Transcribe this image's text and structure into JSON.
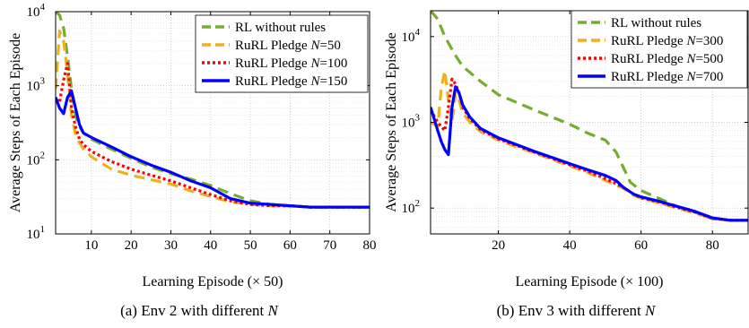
{
  "chart_data": [
    {
      "type": "line",
      "caption": "(a) Env 2 with different N",
      "xlabel": "Learning Episode (× 50)",
      "ylabel": "Average Steps of Each Episode",
      "xlim": [
        1,
        80
      ],
      "ylim": [
        10,
        10000
      ],
      "yscale": "log",
      "grid": true,
      "legend_position": "top-right",
      "x_ticks": [
        10,
        20,
        30,
        40,
        50,
        60,
        70,
        80
      ],
      "y_ticks": [
        10,
        100,
        1000,
        10000
      ],
      "y_tick_labels": [
        {
          "base": "10",
          "exp": "1"
        },
        {
          "base": "10",
          "exp": "2"
        },
        {
          "base": "10",
          "exp": "3"
        },
        {
          "base": "10",
          "exp": "4"
        }
      ],
      "series": [
        {
          "name": "RL without rules",
          "color": "#77ac30",
          "dash": "dash",
          "x": [
            1,
            2,
            3,
            4,
            5,
            6,
            7,
            8,
            10,
            15,
            20,
            25,
            30,
            35,
            40,
            45,
            50,
            55,
            60,
            65,
            70,
            75,
            80
          ],
          "y": [
            10000,
            9000,
            6000,
            2500,
            900,
            400,
            280,
            230,
            190,
            140,
            105,
            80,
            65,
            55,
            45,
            35,
            28,
            25,
            24,
            23,
            23,
            23,
            23
          ]
        },
        {
          "name": "RuRL Pledge N=50",
          "color": "#edb120",
          "dash": "dash",
          "x": [
            1,
            2,
            3,
            4,
            5,
            6,
            7,
            8,
            10,
            15,
            20,
            25,
            30,
            35,
            40,
            45,
            50,
            55,
            60,
            65,
            70,
            75,
            80
          ],
          "y": [
            900,
            5500,
            4000,
            1500,
            400,
            220,
            170,
            140,
            110,
            75,
            62,
            54,
            47,
            38,
            32,
            27,
            25,
            24,
            24,
            23,
            23,
            23,
            23
          ]
        },
        {
          "name": "RuRL Pledge N=100",
          "color": "#ff0000",
          "dash": "dot",
          "x": [
            1,
            2,
            3,
            4,
            5,
            6,
            7,
            8,
            10,
            15,
            20,
            25,
            30,
            35,
            40,
            45,
            50,
            55,
            60,
            65,
            70,
            75,
            80
          ],
          "y": [
            650,
            600,
            1200,
            2000,
            500,
            280,
            190,
            160,
            130,
            95,
            75,
            62,
            52,
            42,
            34,
            28,
            25,
            24,
            24,
            23,
            23,
            23,
            23
          ]
        },
        {
          "name": "RuRL Pledge N=150",
          "color": "#0000ff",
          "dash": "solid",
          "x": [
            1,
            2,
            3,
            4,
            5,
            6,
            7,
            8,
            10,
            15,
            20,
            25,
            30,
            35,
            40,
            45,
            50,
            55,
            60,
            65,
            70,
            75,
            80
          ],
          "y": [
            700,
            500,
            420,
            700,
            850,
            500,
            300,
            230,
            200,
            150,
            110,
            85,
            68,
            52,
            42,
            30,
            26,
            25,
            24,
            23,
            23,
            23,
            23
          ]
        }
      ]
    },
    {
      "type": "line",
      "caption": "(b) Env 3 with different N",
      "xlabel": "Learning Episode (× 100)",
      "ylabel": "Average Steps of Each Episode",
      "xlim": [
        1,
        90
      ],
      "ylim": [
        50,
        20000
      ],
      "yscale": "log",
      "grid": true,
      "legend_position": "top-right",
      "x_ticks": [
        20,
        40,
        60,
        80
      ],
      "y_ticks": [
        100,
        1000,
        10000
      ],
      "y_tick_labels": [
        {
          "base": "10",
          "exp": "2"
        },
        {
          "base": "10",
          "exp": "3"
        },
        {
          "base": "10",
          "exp": "4"
        }
      ],
      "series": [
        {
          "name": "RL without rules",
          "color": "#77ac30",
          "dash": "dash",
          "x": [
            1,
            3,
            5,
            8,
            10,
            15,
            20,
            30,
            40,
            45,
            50,
            53,
            55,
            57,
            60,
            65,
            70,
            75,
            80,
            85,
            90
          ],
          "y": [
            20000,
            16000,
            10000,
            6000,
            4500,
            3000,
            2100,
            1400,
            950,
            750,
            620,
            450,
            300,
            200,
            160,
            130,
            105,
            90,
            75,
            72,
            72
          ]
        },
        {
          "name": "RuRL Pledge N=300",
          "color": "#edb120",
          "dash": "dash",
          "x": [
            1,
            3,
            4,
            5,
            6,
            7,
            8,
            9,
            10,
            12,
            15,
            20,
            25,
            30,
            35,
            40,
            45,
            50,
            55,
            58,
            60,
            65,
            70,
            75,
            80,
            85,
            90
          ],
          "y": [
            1000,
            900,
            2500,
            4000,
            1800,
            1000,
            2200,
            1800,
            1300,
            1000,
            780,
            620,
            520,
            440,
            370,
            310,
            260,
            210,
            170,
            140,
            130,
            115,
            100,
            88,
            75,
            72,
            72
          ]
        },
        {
          "name": "RuRL Pledge N=500",
          "color": "#ff0000",
          "dash": "dot",
          "x": [
            1,
            3,
            5,
            6,
            7,
            8,
            9,
            10,
            12,
            15,
            20,
            25,
            30,
            35,
            40,
            45,
            50,
            55,
            58,
            60,
            65,
            70,
            75,
            80,
            85,
            90
          ],
          "y": [
            1400,
            1000,
            800,
            1500,
            3200,
            2800,
            2200,
            1500,
            1100,
            820,
            640,
            540,
            450,
            380,
            320,
            270,
            220,
            175,
            145,
            132,
            118,
            102,
            90,
            76,
            72,
            72
          ]
        },
        {
          "name": "RuRL Pledge N=700",
          "color": "#0000ff",
          "dash": "solid",
          "x": [
            1,
            2,
            3,
            4,
            5,
            6,
            7,
            8,
            9,
            10,
            12,
            15,
            20,
            25,
            30,
            35,
            40,
            45,
            50,
            53,
            55,
            58,
            60,
            65,
            70,
            75,
            80,
            85,
            90
          ],
          "y": [
            1500,
            1100,
            800,
            600,
            480,
            420,
            1500,
            2600,
            2200,
            1600,
            1150,
            850,
            660,
            550,
            460,
            390,
            330,
            280,
            240,
            210,
            175,
            145,
            135,
            120,
            105,
            92,
            77,
            72,
            72
          ]
        }
      ]
    }
  ]
}
